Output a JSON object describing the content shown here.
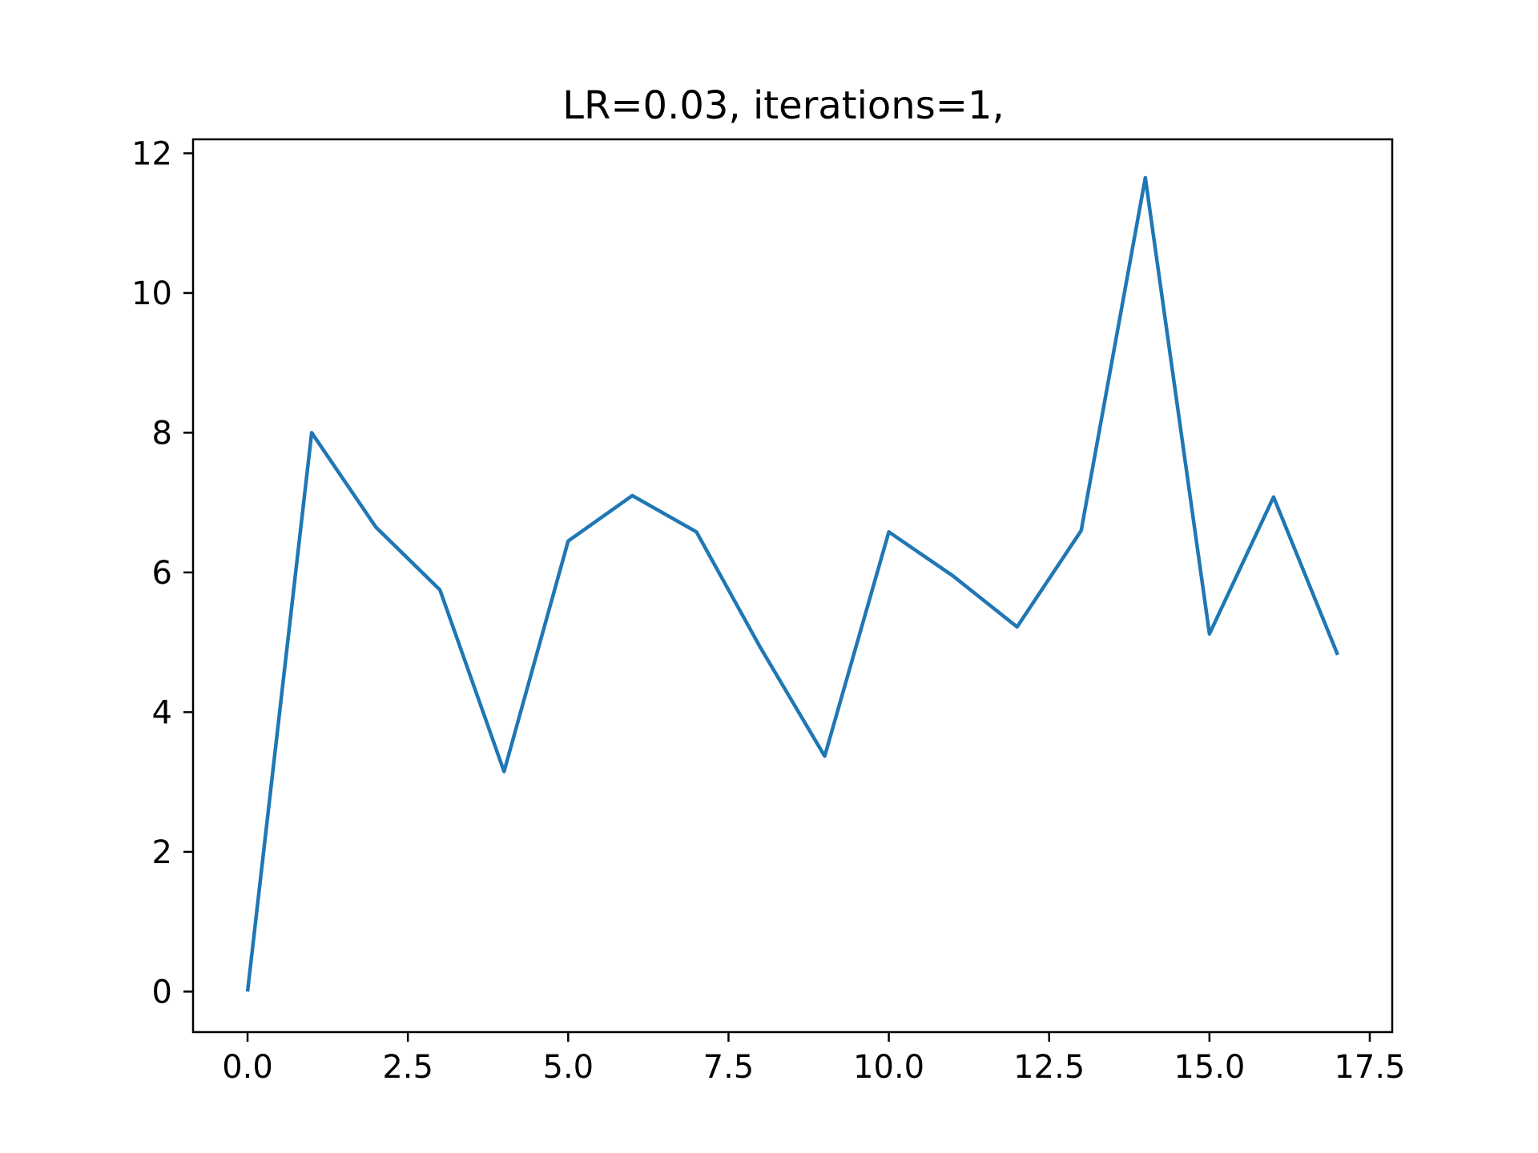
{
  "chart_data": {
    "type": "line",
    "title": "LR=0.03, iterations=1,",
    "xlabel": "",
    "ylabel": "",
    "xlim": [
      -0.85,
      17.85
    ],
    "ylim": [
      -0.58,
      12.2
    ],
    "xticks": [
      0.0,
      2.5,
      5.0,
      7.5,
      10.0,
      12.5,
      15.0,
      17.5
    ],
    "xtick_labels": [
      "0.0",
      "2.5",
      "5.0",
      "7.5",
      "10.0",
      "12.5",
      "15.0",
      "17.5"
    ],
    "yticks": [
      0,
      2,
      4,
      6,
      8,
      10,
      12
    ],
    "ytick_labels": [
      "0",
      "2",
      "4",
      "6",
      "8",
      "10",
      "12"
    ],
    "grid": false,
    "series": [
      {
        "color": "#1f77b4",
        "x": [
          0,
          1,
          2,
          3,
          4,
          5,
          6,
          7,
          8,
          9,
          10,
          11,
          12,
          13,
          14,
          15,
          16,
          17
        ],
        "y": [
          0.0,
          8.0,
          6.65,
          5.75,
          3.15,
          6.45,
          7.1,
          6.58,
          4.92,
          3.37,
          6.58,
          5.95,
          5.22,
          6.6,
          11.65,
          5.12,
          7.08,
          4.82
        ]
      }
    ]
  }
}
